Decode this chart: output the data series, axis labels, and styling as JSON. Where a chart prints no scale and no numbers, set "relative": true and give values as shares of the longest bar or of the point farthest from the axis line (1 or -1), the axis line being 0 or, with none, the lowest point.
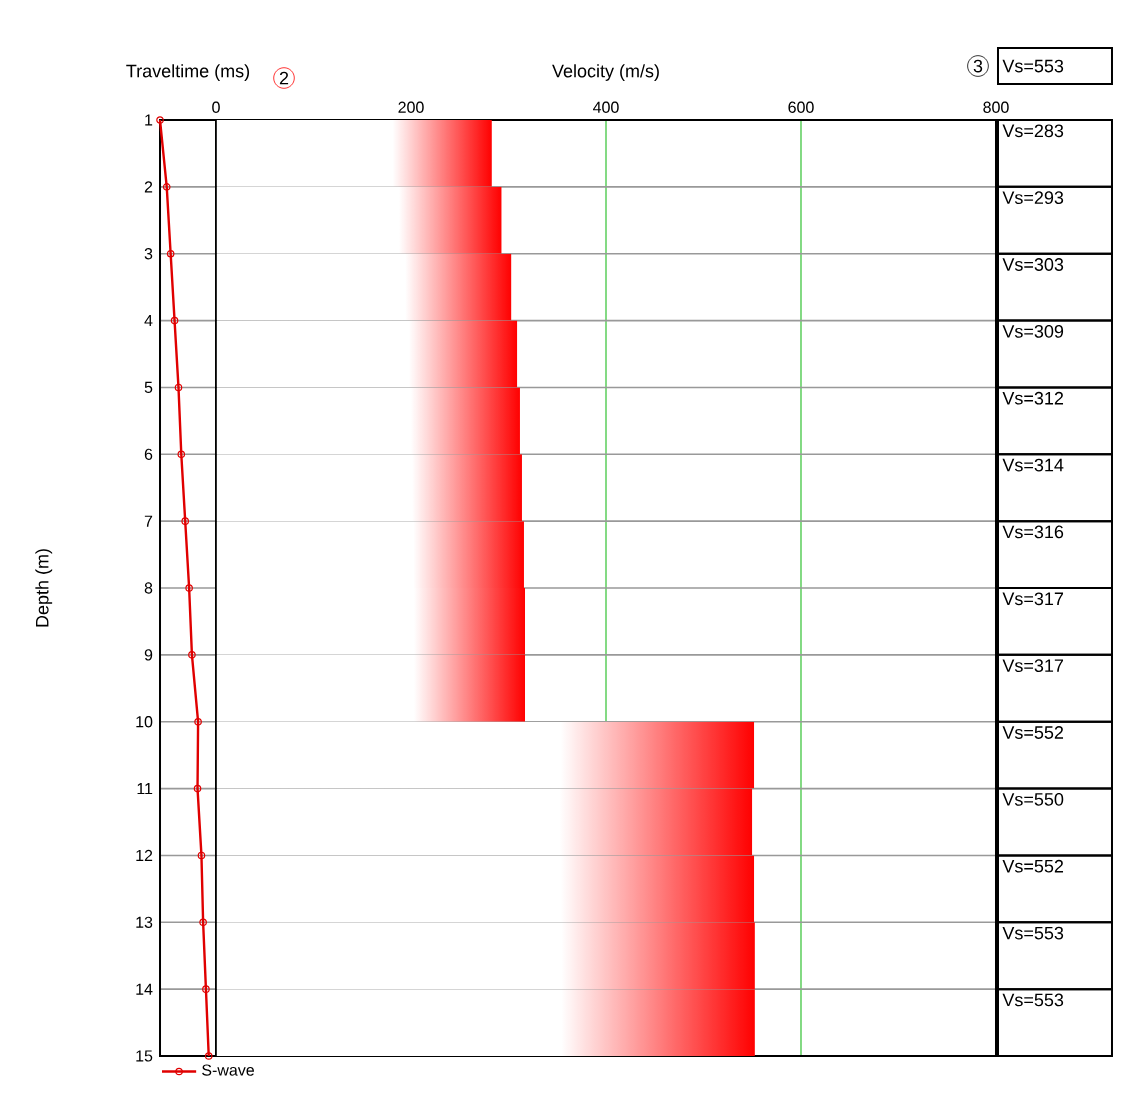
{
  "chart_data": [
    {
      "type": "line",
      "relative": true,
      "orientation": "horizontal",
      "xlabel": "Traveltime (ms)",
      "ylabel": "Depth (m)",
      "ylim": [
        15,
        1
      ],
      "yticks": [
        1,
        2,
        3,
        4,
        5,
        6,
        7,
        8,
        9,
        10,
        11,
        12,
        13,
        14,
        15
      ],
      "grid": "y",
      "legend": "bottom",
      "marker": "circle",
      "annotations": [
        "2"
      ],
      "series": [
        {
          "name": "S-wave",
          "color": "#e00000",
          "x": [
            1,
            2,
            3,
            4,
            5,
            6,
            7,
            8,
            9,
            10,
            11,
            12,
            13,
            14,
            15
          ],
          "values": [
            -1,
            -0.88,
            -0.81,
            -0.74,
            -0.67,
            -0.62,
            -0.55,
            -0.48,
            -0.43,
            -0.32,
            -0.33,
            -0.26,
            -0.23,
            -0.18,
            -0.13
          ]
        }
      ]
    },
    {
      "type": "bar",
      "orientation": "horizontal",
      "xlabel": "Velocity (m/s)",
      "color": "#ff0000",
      "xlim": [
        0,
        800
      ],
      "xticks": [
        0,
        200,
        400,
        600,
        800
      ],
      "grid": true,
      "categories": [
        null,
        null,
        null,
        null,
        null,
        null,
        null,
        null,
        null,
        null,
        null,
        null,
        null,
        null
      ],
      "values": [
        283,
        293,
        303,
        309,
        312,
        314,
        316,
        317,
        317,
        552,
        550,
        552,
        553,
        553
      ],
      "value_labels": [
        "Vs=283",
        "Vs=293",
        "Vs=303",
        "Vs=309",
        "Vs=312",
        "Vs=314",
        "Vs=316",
        "Vs=317",
        "Vs=317",
        "Vs=552",
        "Vs=550",
        "Vs=552",
        "Vs=553",
        "Vs=553"
      ],
      "annotations": [
        "Vs=553",
        "3"
      ]
    }
  ]
}
